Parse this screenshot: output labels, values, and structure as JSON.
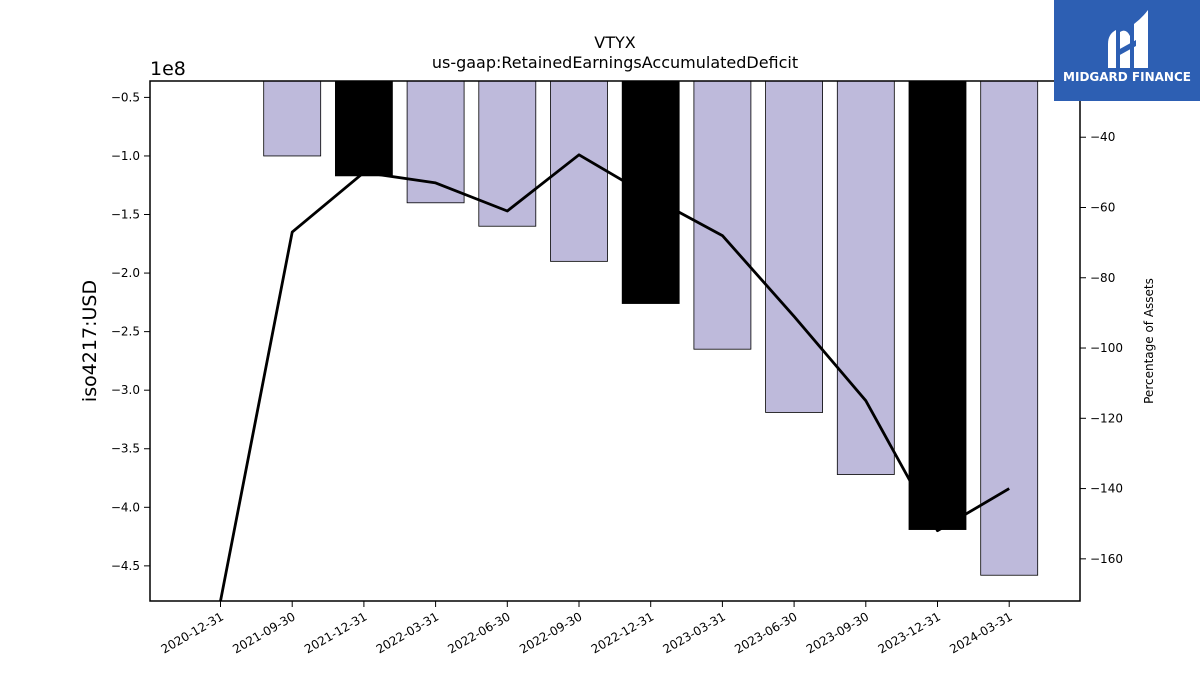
{
  "chart_data": {
    "type": "bar",
    "title": "VTYX",
    "subtitle": "us-gaap:RetainedEarningsAccumulatedDeficit",
    "ylabel": "iso4217:USD",
    "y2label": "Percentage of Assets",
    "y_offset_text": "1e8",
    "categories": [
      "2020-12-31",
      "2021-09-30",
      "2021-12-31",
      "2022-03-31",
      "2022-06-30",
      "2022-09-30",
      "2022-12-31",
      "2023-03-31",
      "2023-06-30",
      "2023-09-30",
      "2023-12-31",
      "2024-03-31"
    ],
    "series": [
      {
        "values": [
          null,
          -100000000,
          -117000000,
          -140000000,
          -160000000,
          -190000000,
          -226000000,
          -265000000,
          -319000000,
          -372000000,
          -419000000,
          -458000000
        ],
        "highlight": [
          false,
          false,
          true,
          false,
          false,
          false,
          true,
          false,
          false,
          false,
          true,
          false
        ]
      },
      {
        "axis": "right",
        "values": [
          -180,
          -67,
          -50,
          -53,
          -61,
          -45,
          -57,
          -68,
          -91,
          -115,
          -152,
          -140
        ]
      }
    ],
    "ylim": [
      -480000000,
      -36000000
    ],
    "y2lim": [
      -172,
      -24
    ],
    "yticks": [
      -450000000,
      -400000000,
      -350000000,
      -300000000,
      -250000000,
      -200000000,
      -150000000,
      -100000000,
      -50000000
    ],
    "ytick_labels": [
      "−4.5",
      "−4.0",
      "−3.5",
      "−3.0",
      "−2.5",
      "−2.0",
      "−1.5",
      "−1.0",
      "−0.5"
    ],
    "y2ticks": [
      -160,
      -140,
      -120,
      -100,
      -80,
      -60,
      -40
    ],
    "y2tick_labels": [
      "−160",
      "−140",
      "−120",
      "−100",
      "−80",
      "−60",
      "−40"
    ],
    "grid": false,
    "colors": {
      "bar": "#bebadb",
      "highlight": "#000000",
      "line": "#000000"
    }
  },
  "logo": {
    "text": "MIDGARD FINANCE",
    "background": "#2d5fb3"
  }
}
